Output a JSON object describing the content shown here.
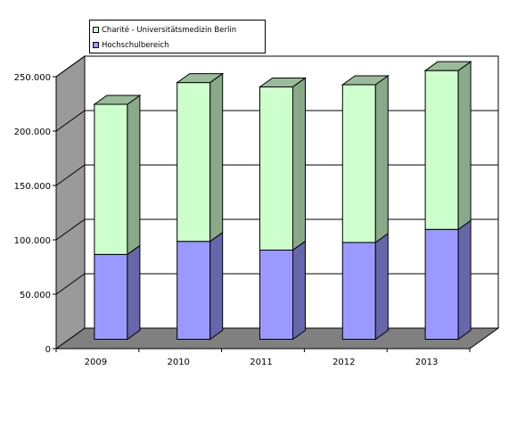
{
  "chart_data": {
    "type": "bar",
    "stacked": true,
    "three_d": true,
    "categories": [
      "2009",
      "2010",
      "2011",
      "2012",
      "2013"
    ],
    "series": [
      {
        "name": "Hochschulbereich",
        "values": [
          78000,
          90000,
          82000,
          89000,
          101000
        ],
        "color": "#9999ff",
        "side_color": "#6666aa",
        "top_color": "#7a7ad0"
      },
      {
        "name": "Charité - Universitätsmedizin Berlin",
        "values": [
          138000,
          146000,
          150000,
          145000,
          146000
        ],
        "color": "#ccffcc",
        "side_color": "#88aa88",
        "top_color": "#99bb99"
      }
    ],
    "ylim": [
      0,
      250000
    ],
    "yticks": [
      0,
      50000,
      100000,
      150000,
      200000,
      250000
    ],
    "ytick_labels": [
      "0",
      "50.000",
      "100.000",
      "150.000",
      "200.000",
      "250.000"
    ],
    "grid": true,
    "legend_position": "top-left",
    "title": "",
    "xlabel": "",
    "ylabel": ""
  },
  "legend": {
    "items": [
      {
        "label": "Charité - Universitätsmedizin Berlin",
        "color": "#ccffcc"
      },
      {
        "label": "Hochschulbereich",
        "color": "#9999ff"
      }
    ]
  }
}
